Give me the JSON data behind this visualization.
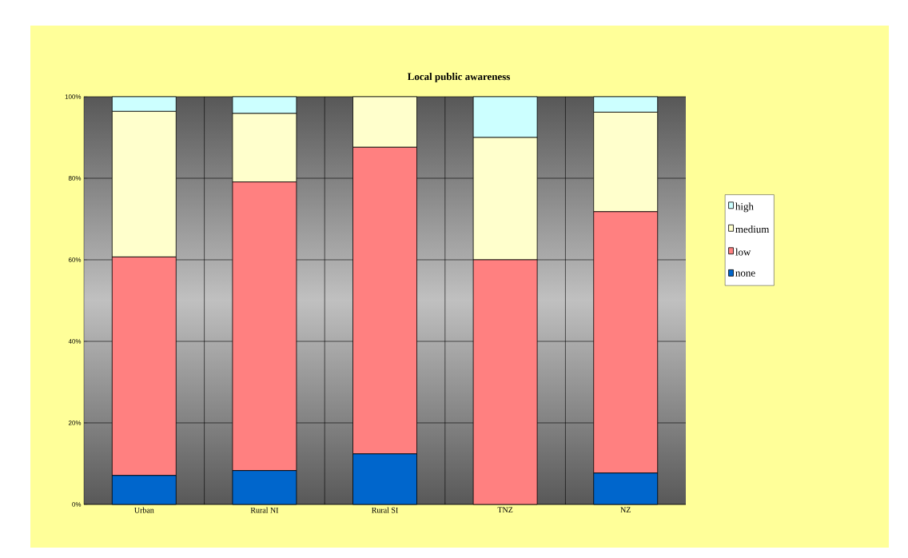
{
  "chart_data": {
    "type": "bar",
    "stacked": true,
    "title": "Local public awareness",
    "categories": [
      "Urban",
      "Rural NI",
      "Rural SI",
      "TNZ",
      "NZ"
    ],
    "series": [
      {
        "name": "none",
        "color": "#0066cc",
        "values": [
          7.1,
          8.3,
          12.4,
          0,
          7.7
        ]
      },
      {
        "name": "low",
        "color": "#ff8080",
        "values": [
          53.6,
          70.8,
          75.2,
          60,
          64.1
        ]
      },
      {
        "name": "medium",
        "color": "#ffffcc",
        "values": [
          35.7,
          16.8,
          12.4,
          30,
          24.4
        ]
      },
      {
        "name": "high",
        "color": "#ccffff",
        "values": [
          3.6,
          4.1,
          0,
          10,
          3.8
        ]
      }
    ],
    "ylim": [
      0,
      100
    ],
    "yticks": [
      {
        "value": 0,
        "label": "0%"
      },
      {
        "value": 20,
        "label": "20%"
      },
      {
        "value": 40,
        "label": "40%"
      },
      {
        "value": 60,
        "label": "60%"
      },
      {
        "value": 80,
        "label": "80%"
      },
      {
        "value": 100,
        "label": "100%"
      }
    ],
    "grid": true,
    "legend": "right"
  }
}
